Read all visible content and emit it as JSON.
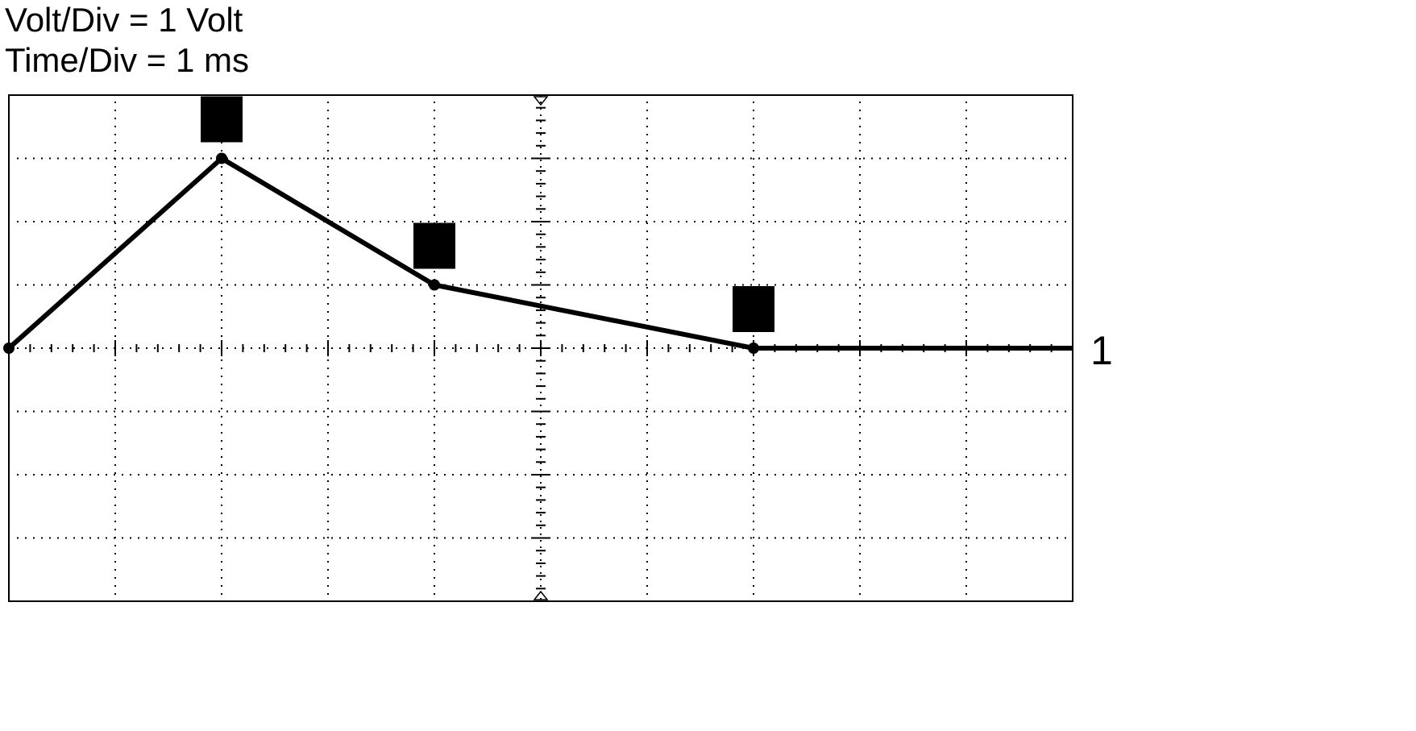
{
  "header": {
    "volt_div": "Volt/Div = 1 Volt",
    "time_div": "Time/Div = 1 ms"
  },
  "channel_label": "1",
  "chart_data": {
    "type": "line",
    "title": "",
    "xlabel": "",
    "ylabel": "",
    "x_divisions": 10,
    "y_divisions": 8,
    "x_unit": "ms",
    "y_unit": "V",
    "xlim": [
      0,
      10
    ],
    "ylim": [
      -4,
      4
    ],
    "grid": "dotted",
    "series": [
      {
        "x": [
          0,
          2,
          4,
          7,
          10
        ],
        "y": [
          0,
          3,
          1,
          0,
          0
        ]
      }
    ],
    "markers": [
      {
        "x": 2,
        "y": 3
      },
      {
        "x": 4,
        "y": 1
      },
      {
        "x": 7,
        "y": 0
      }
    ],
    "colors": {
      "trace": "#000000",
      "grid": "#000000",
      "background": "#ffffff"
    }
  }
}
